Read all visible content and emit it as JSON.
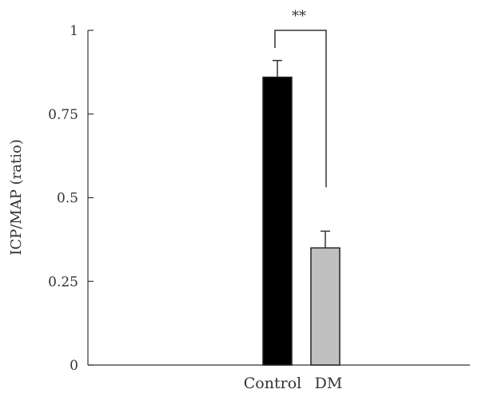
{
  "chart_data": {
    "type": "bar",
    "title": "",
    "xlabel": "",
    "ylabel": "ICP/MAP (ratio)",
    "ylim": [
      0,
      1
    ],
    "yticks": [
      {
        "value": 0,
        "label": "0"
      },
      {
        "value": 0.25,
        "label": "0.25"
      },
      {
        "value": 0.5,
        "label": "0.5"
      },
      {
        "value": 0.75,
        "label": "0.75"
      },
      {
        "value": 1,
        "label": "1"
      }
    ],
    "categories": [
      "Control",
      "DM"
    ],
    "values": [
      0.86,
      0.35
    ],
    "errors": [
      0.05,
      0.05
    ],
    "colors": [
      "#000000",
      "#c0c0c0"
    ],
    "significance": {
      "between": [
        "Control",
        "DM"
      ],
      "label": "**"
    },
    "grid": false,
    "legend": "none"
  }
}
